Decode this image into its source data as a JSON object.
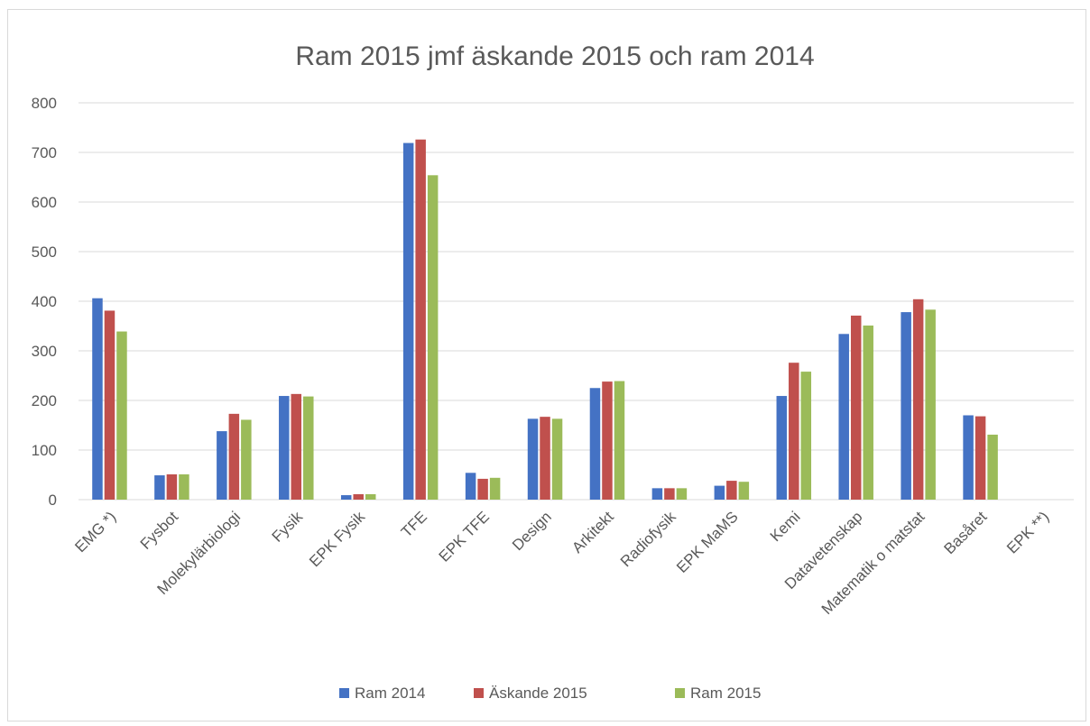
{
  "chart_data": {
    "type": "bar",
    "title": "Ram 2015 jmf äskande 2015 och ram 2014",
    "xlabel": "",
    "ylabel": "",
    "ylim": [
      0,
      800
    ],
    "yticks": [
      "0",
      "100",
      "200",
      "300",
      "400",
      "500",
      "600",
      "700",
      "800"
    ],
    "grid": true,
    "legend_position": "bottom",
    "categories": [
      "EMG *)",
      "Fysbot",
      "Molekylärbiologi",
      "Fysik",
      "EPK Fysik",
      "TFE",
      "EPK TFE",
      "Design",
      "Arkitekt",
      "Radiofysik",
      "EPK MaMS",
      "Kemi",
      "Datavetenskap",
      "Matematik o matstat",
      "Basåret",
      "EPK **)"
    ],
    "series": [
      {
        "name": "Ram 2014",
        "color": "#4472c4",
        "values": [
          406,
          49,
          138,
          209,
          9,
          719,
          54,
          163,
          225,
          23,
          28,
          209,
          334,
          378,
          170,
          0
        ]
      },
      {
        "name": "Äskande 2015",
        "color": "#c0504d",
        "values": [
          381,
          51,
          173,
          213,
          11,
          726,
          42,
          167,
          238,
          23,
          38,
          276,
          371,
          404,
          168,
          0
        ]
      },
      {
        "name": "Ram 2015",
        "color": "#9bbb59",
        "values": [
          339,
          51,
          161,
          208,
          11,
          654,
          44,
          163,
          239,
          23,
          36,
          258,
          351,
          383,
          131,
          0
        ]
      }
    ]
  }
}
